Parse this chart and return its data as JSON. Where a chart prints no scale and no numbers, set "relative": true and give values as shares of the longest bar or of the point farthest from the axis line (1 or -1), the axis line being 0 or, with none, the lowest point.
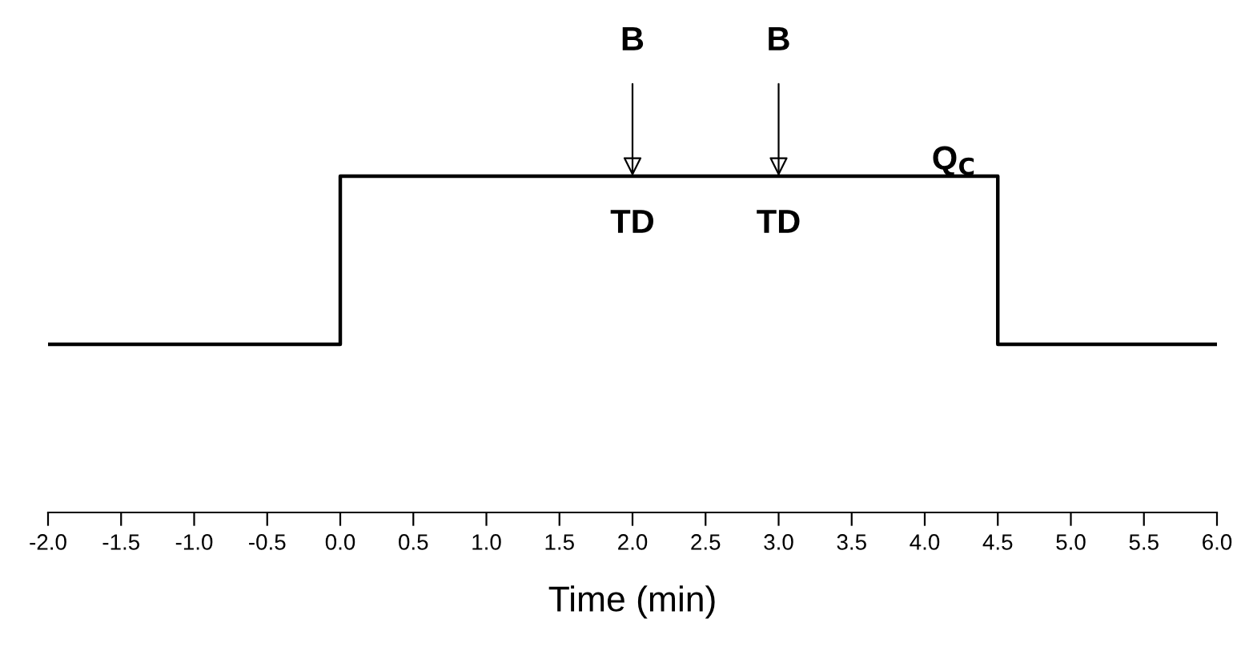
{
  "chart_data": {
    "type": "step",
    "relative": true,
    "xlabel": "Time (min)",
    "x": [
      -2,
      0,
      4.5,
      6
    ],
    "series": [
      {
        "color": "#000000",
        "values": [
          0.5,
          1,
          0.5,
          0.5
        ]
      }
    ],
    "xlim": [
      -2,
      6
    ],
    "xticks": [
      {
        "value": -2,
        "label": "-2.0"
      },
      {
        "value": -1.5,
        "label": "-1.5"
      },
      {
        "value": -1,
        "label": "-1.0"
      },
      {
        "value": -0.5,
        "label": "-0.5"
      },
      {
        "value": 0,
        "label": "0.0"
      },
      {
        "value": 0.5,
        "label": "0.5"
      },
      {
        "value": 1,
        "label": "1.0"
      },
      {
        "value": 1.5,
        "label": "1.5"
      },
      {
        "value": 2,
        "label": "2.0"
      },
      {
        "value": 2.5,
        "label": "2.5"
      },
      {
        "value": 3,
        "label": "3.0"
      },
      {
        "value": 3.5,
        "label": "3.5"
      },
      {
        "value": 4,
        "label": "4.0"
      },
      {
        "value": 4.5,
        "label": "4.5"
      },
      {
        "value": 5,
        "label": "5.0"
      },
      {
        "value": 5.5,
        "label": "5.5"
      },
      {
        "value": 6,
        "label": "6.0"
      }
    ],
    "tick_labels": "x",
    "grid": false,
    "legend": false,
    "annotations": [
      {
        "text": "B",
        "x": 2,
        "y": 1
      },
      {
        "text": "B",
        "x": 3,
        "y": 1
      },
      "TD",
      "TD",
      "Q$_{C}$"
    ]
  }
}
